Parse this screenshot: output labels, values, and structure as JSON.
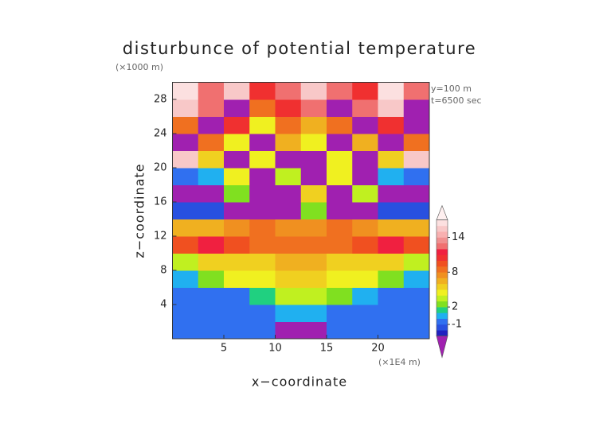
{
  "chart_data": {
    "type": "heatmap",
    "title": "disturbunce of potential temperature",
    "y_unit": "(×1000 m)",
    "x_unit": "(×1E4 m)",
    "annotations": [
      "y=100 m",
      "t=6500 sec"
    ],
    "xlabel": "x−coordinate",
    "ylabel": "z−coordinate",
    "xlim": [
      0,
      25
    ],
    "ylim": [
      0,
      30
    ],
    "xticks": [
      5,
      10,
      15,
      20
    ],
    "yticks": [
      4,
      8,
      12,
      16,
      20,
      24,
      28
    ],
    "x": [
      1.25,
      3.75,
      6.25,
      8.75,
      11.25,
      13.75,
      16.25,
      18.75,
      21.25,
      23.75
    ],
    "y": [
      1,
      3,
      5,
      7,
      9,
      11,
      13,
      15,
      17,
      19,
      21,
      23,
      25,
      27,
      29
    ],
    "values": [
      [
        -1,
        -1,
        -1,
        -1,
        -4,
        -4,
        -1,
        -1,
        -1,
        -1
      ],
      [
        -1,
        -1,
        -1,
        -1,
        0,
        0,
        -1,
        -1,
        -1,
        -1
      ],
      [
        -1,
        -1,
        -1,
        1,
        3,
        3,
        2,
        0,
        -1,
        -1
      ],
      [
        0,
        2,
        4,
        4,
        5,
        5,
        4,
        4,
        2,
        0
      ],
      [
        3,
        5,
        5,
        5,
        6,
        6,
        5,
        5,
        5,
        3
      ],
      [
        9,
        11,
        9,
        8,
        8,
        8,
        8,
        9,
        11,
        9
      ],
      [
        6,
        6,
        7,
        8,
        7,
        7,
        8,
        7,
        6,
        6
      ],
      [
        -2,
        -2,
        -4,
        -4,
        -4,
        2,
        -4,
        -4,
        -2,
        -2
      ],
      [
        -4,
        -4,
        2,
        -4,
        -4,
        5,
        -4,
        3,
        -4,
        -4
      ],
      [
        -1,
        0,
        4,
        -4,
        3,
        -4,
        4,
        -4,
        0,
        -1
      ],
      [
        15,
        5,
        -4,
        4,
        -4,
        -4,
        4,
        -4,
        5,
        15
      ],
      [
        -4,
        8,
        4,
        -4,
        6,
        4,
        -4,
        6,
        -4,
        8
      ],
      [
        8,
        -4,
        10,
        4,
        8,
        6,
        8,
        -4,
        10,
        -4
      ],
      [
        15,
        12,
        -4,
        8,
        10,
        12,
        -4,
        12,
        15,
        -4
      ],
      [
        16,
        12,
        15,
        10,
        12,
        15,
        12,
        10,
        16,
        12
      ]
    ],
    "levels": [
      -3,
      -2,
      -1,
      0,
      1,
      2,
      3,
      4,
      5,
      6,
      7,
      8,
      9,
      10,
      11,
      12,
      13,
      14,
      15,
      16,
      17
    ],
    "colors": [
      "#2020c0",
      "#2850e0",
      "#3070f0",
      "#20b0f0",
      "#20d080",
      "#80e020",
      "#c0f020",
      "#f0f020",
      "#f0d020",
      "#f0b020",
      "#f09020",
      "#f07020",
      "#f05020",
      "#f03030",
      "#f02040",
      "#f07070",
      "#f09090",
      "#f8b0b0",
      "#f8c8c8",
      "#fce0e0"
    ],
    "under_color": "#a020b0",
    "over_color": "#fff0f0",
    "colorbar_ticks": [
      -1,
      2,
      8,
      14
    ]
  }
}
